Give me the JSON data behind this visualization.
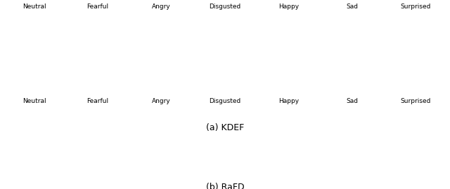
{
  "emotions": [
    "Neutral",
    "Fearful",
    "Angry",
    "Disgusted",
    "Happy",
    "Sad",
    "Surprised"
  ],
  "datasets": [
    "KDEF",
    "RaFD"
  ],
  "caption_a": "(a) KDEF",
  "caption_b": "(b) RaFD",
  "fig_width": 6.4,
  "fig_height": 2.7,
  "dpi": 100,
  "line_color": "white",
  "bg_color": "black",
  "text_color": "black",
  "label_fontsize": 6.5,
  "caption_fontsize": 9
}
